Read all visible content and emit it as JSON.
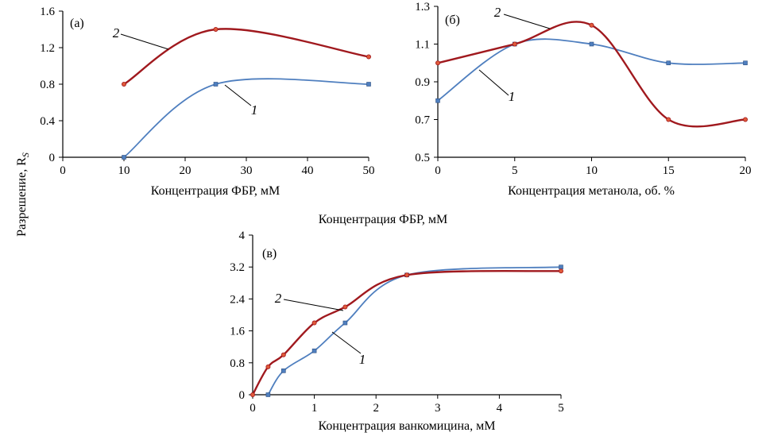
{
  "figure": {
    "shared_ylabel": "Разрешение, R",
    "shared_ylabel_sub": "S",
    "shared_xlabel": "Концентрация ФБР, мМ"
  },
  "colors": {
    "series1": "#4F7FBF",
    "series2": "#A0191E"
  },
  "chart_data": [
    {
      "type": "line",
      "panel_label": "(а)",
      "xlabel": "Концентрация ФБР, мМ",
      "ylabel": "",
      "xlim": [
        0,
        50
      ],
      "ylim": [
        0,
        1.6
      ],
      "xticks": [
        "0",
        "10",
        "20",
        "30",
        "40",
        "50"
      ],
      "yticks": [
        "0",
        "0.4",
        "0.8",
        "1.2",
        "1.6"
      ],
      "series": [
        {
          "name": "1",
          "x": [
            10,
            25,
            50
          ],
          "values": [
            0,
            0.8,
            0.8
          ]
        },
        {
          "name": "2",
          "x": [
            10,
            25,
            50
          ],
          "values": [
            0.8,
            1.4,
            1.1
          ]
        }
      ]
    },
    {
      "type": "line",
      "panel_label": "(б)",
      "xlabel": "Концентрация метанола, об. %",
      "ylabel": "",
      "xlim": [
        0,
        20
      ],
      "ylim": [
        0.5,
        1.3
      ],
      "xticks": [
        "0",
        "5",
        "10",
        "15",
        "20"
      ],
      "yticks": [
        "0.5",
        "0.7",
        "0.9",
        "1.1",
        "1.3"
      ],
      "series": [
        {
          "name": "1",
          "x": [
            0,
            5,
            10,
            15,
            20
          ],
          "values": [
            0.8,
            1.1,
            1.1,
            1.0,
            1.0
          ]
        },
        {
          "name": "2",
          "x": [
            0,
            5,
            10,
            15,
            20
          ],
          "values": [
            1.0,
            1.1,
            1.2,
            0.7,
            0.7
          ]
        }
      ]
    },
    {
      "type": "line",
      "panel_label": "(в)",
      "xlabel": "Концентрация ванкомицина, мМ",
      "ylabel": "",
      "xlim": [
        0,
        5
      ],
      "ylim": [
        0,
        4
      ],
      "xticks": [
        "0",
        "1",
        "2",
        "3",
        "4",
        "5"
      ],
      "yticks": [
        "0",
        "0.8",
        "1.6",
        "2.4",
        "3.2",
        "4"
      ],
      "series": [
        {
          "name": "1",
          "x": [
            0.25,
            0.5,
            1.0,
            1.5,
            2.5,
            5.0
          ],
          "values": [
            0,
            0.6,
            1.1,
            1.8,
            3.0,
            3.2
          ]
        },
        {
          "name": "2",
          "x": [
            0,
            0.25,
            0.5,
            1.0,
            1.5,
            2.5,
            5.0
          ],
          "values": [
            0,
            0.7,
            1.0,
            1.8,
            2.2,
            3.0,
            3.1
          ]
        }
      ]
    }
  ]
}
